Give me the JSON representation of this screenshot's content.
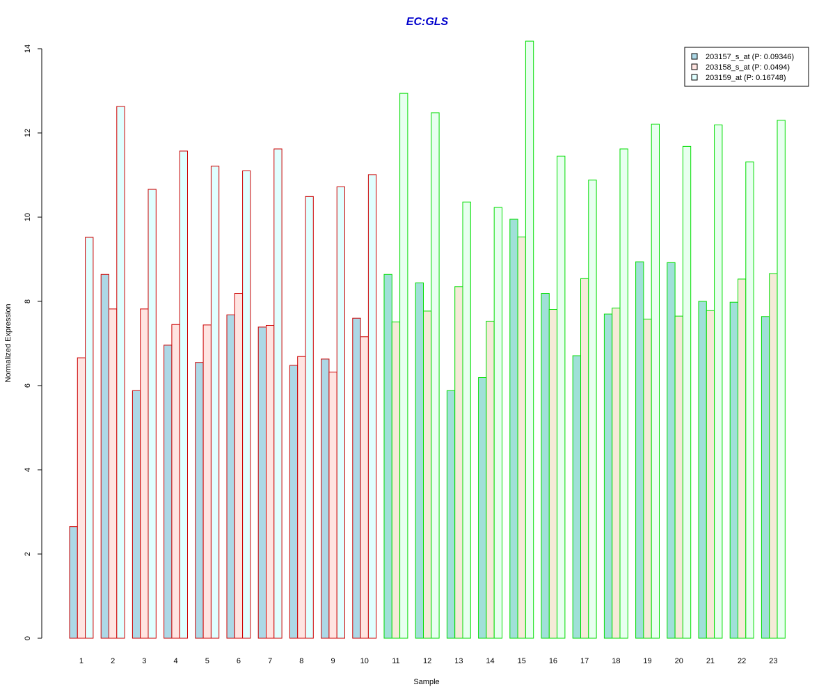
{
  "chart_data": {
    "type": "bar",
    "title": "EC:GLS",
    "xlabel": "Sample",
    "ylabel": "Normalized Expression",
    "ylim": [
      0,
      14
    ],
    "yticks": [
      0,
      2,
      4,
      6,
      8,
      10,
      12,
      14
    ],
    "grid": false,
    "legend_position": "top-right",
    "categories": [
      "1",
      "2",
      "3",
      "4",
      "5",
      "6",
      "7",
      "8",
      "9",
      "10",
      "11",
      "12",
      "13",
      "14",
      "15",
      "16",
      "17",
      "18",
      "19",
      "20",
      "21",
      "22",
      "23"
    ],
    "series": [
      {
        "name": "203157_s_at (P: 0.09346)",
        "fill": "#add8e6",
        "values": [
          2.65,
          8.64,
          5.88,
          6.96,
          6.55,
          7.68,
          7.39,
          6.48,
          6.63,
          7.6,
          8.64,
          8.44,
          5.88,
          6.19,
          9.95,
          8.19,
          6.71,
          7.7,
          8.94,
          8.92,
          8.0,
          7.98,
          7.64
        ]
      },
      {
        "name": "203158_s_at (P: 0.0494)",
        "fill": "#ffe4e1",
        "values": [
          6.66,
          7.82,
          7.82,
          7.45,
          7.44,
          8.19,
          7.43,
          6.69,
          6.32,
          7.16,
          7.51,
          7.77,
          8.35,
          7.53,
          9.53,
          7.81,
          8.54,
          7.84,
          7.58,
          7.65,
          7.78,
          8.53,
          8.66
        ]
      },
      {
        "name": "203159_at (P: 0.16748)",
        "fill": "#e0ffff",
        "values": [
          9.52,
          12.63,
          10.66,
          11.57,
          11.21,
          11.1,
          11.62,
          10.49,
          10.72,
          11.01,
          12.94,
          12.48,
          10.36,
          10.23,
          14.18,
          11.45,
          10.88,
          11.62,
          12.21,
          11.68,
          12.19,
          11.31,
          12.3
        ]
      }
    ],
    "group_outline_colors": [
      "#cc0000",
      "#cc0000",
      "#cc0000",
      "#cc0000",
      "#cc0000",
      "#cc0000",
      "#cc0000",
      "#cc0000",
      "#cc0000",
      "#cc0000",
      "#00dd00",
      "#00dd00",
      "#00dd00",
      "#00dd00",
      "#00dd00",
      "#00dd00",
      "#00dd00",
      "#00dd00",
      "#00dd00",
      "#00dd00",
      "#00dd00",
      "#00dd00",
      "#00dd00"
    ],
    "green_group_fills": [
      "#a0e0d8",
      "#f5ead8",
      "#e8fff0"
    ],
    "title_color": "#0000cc"
  }
}
